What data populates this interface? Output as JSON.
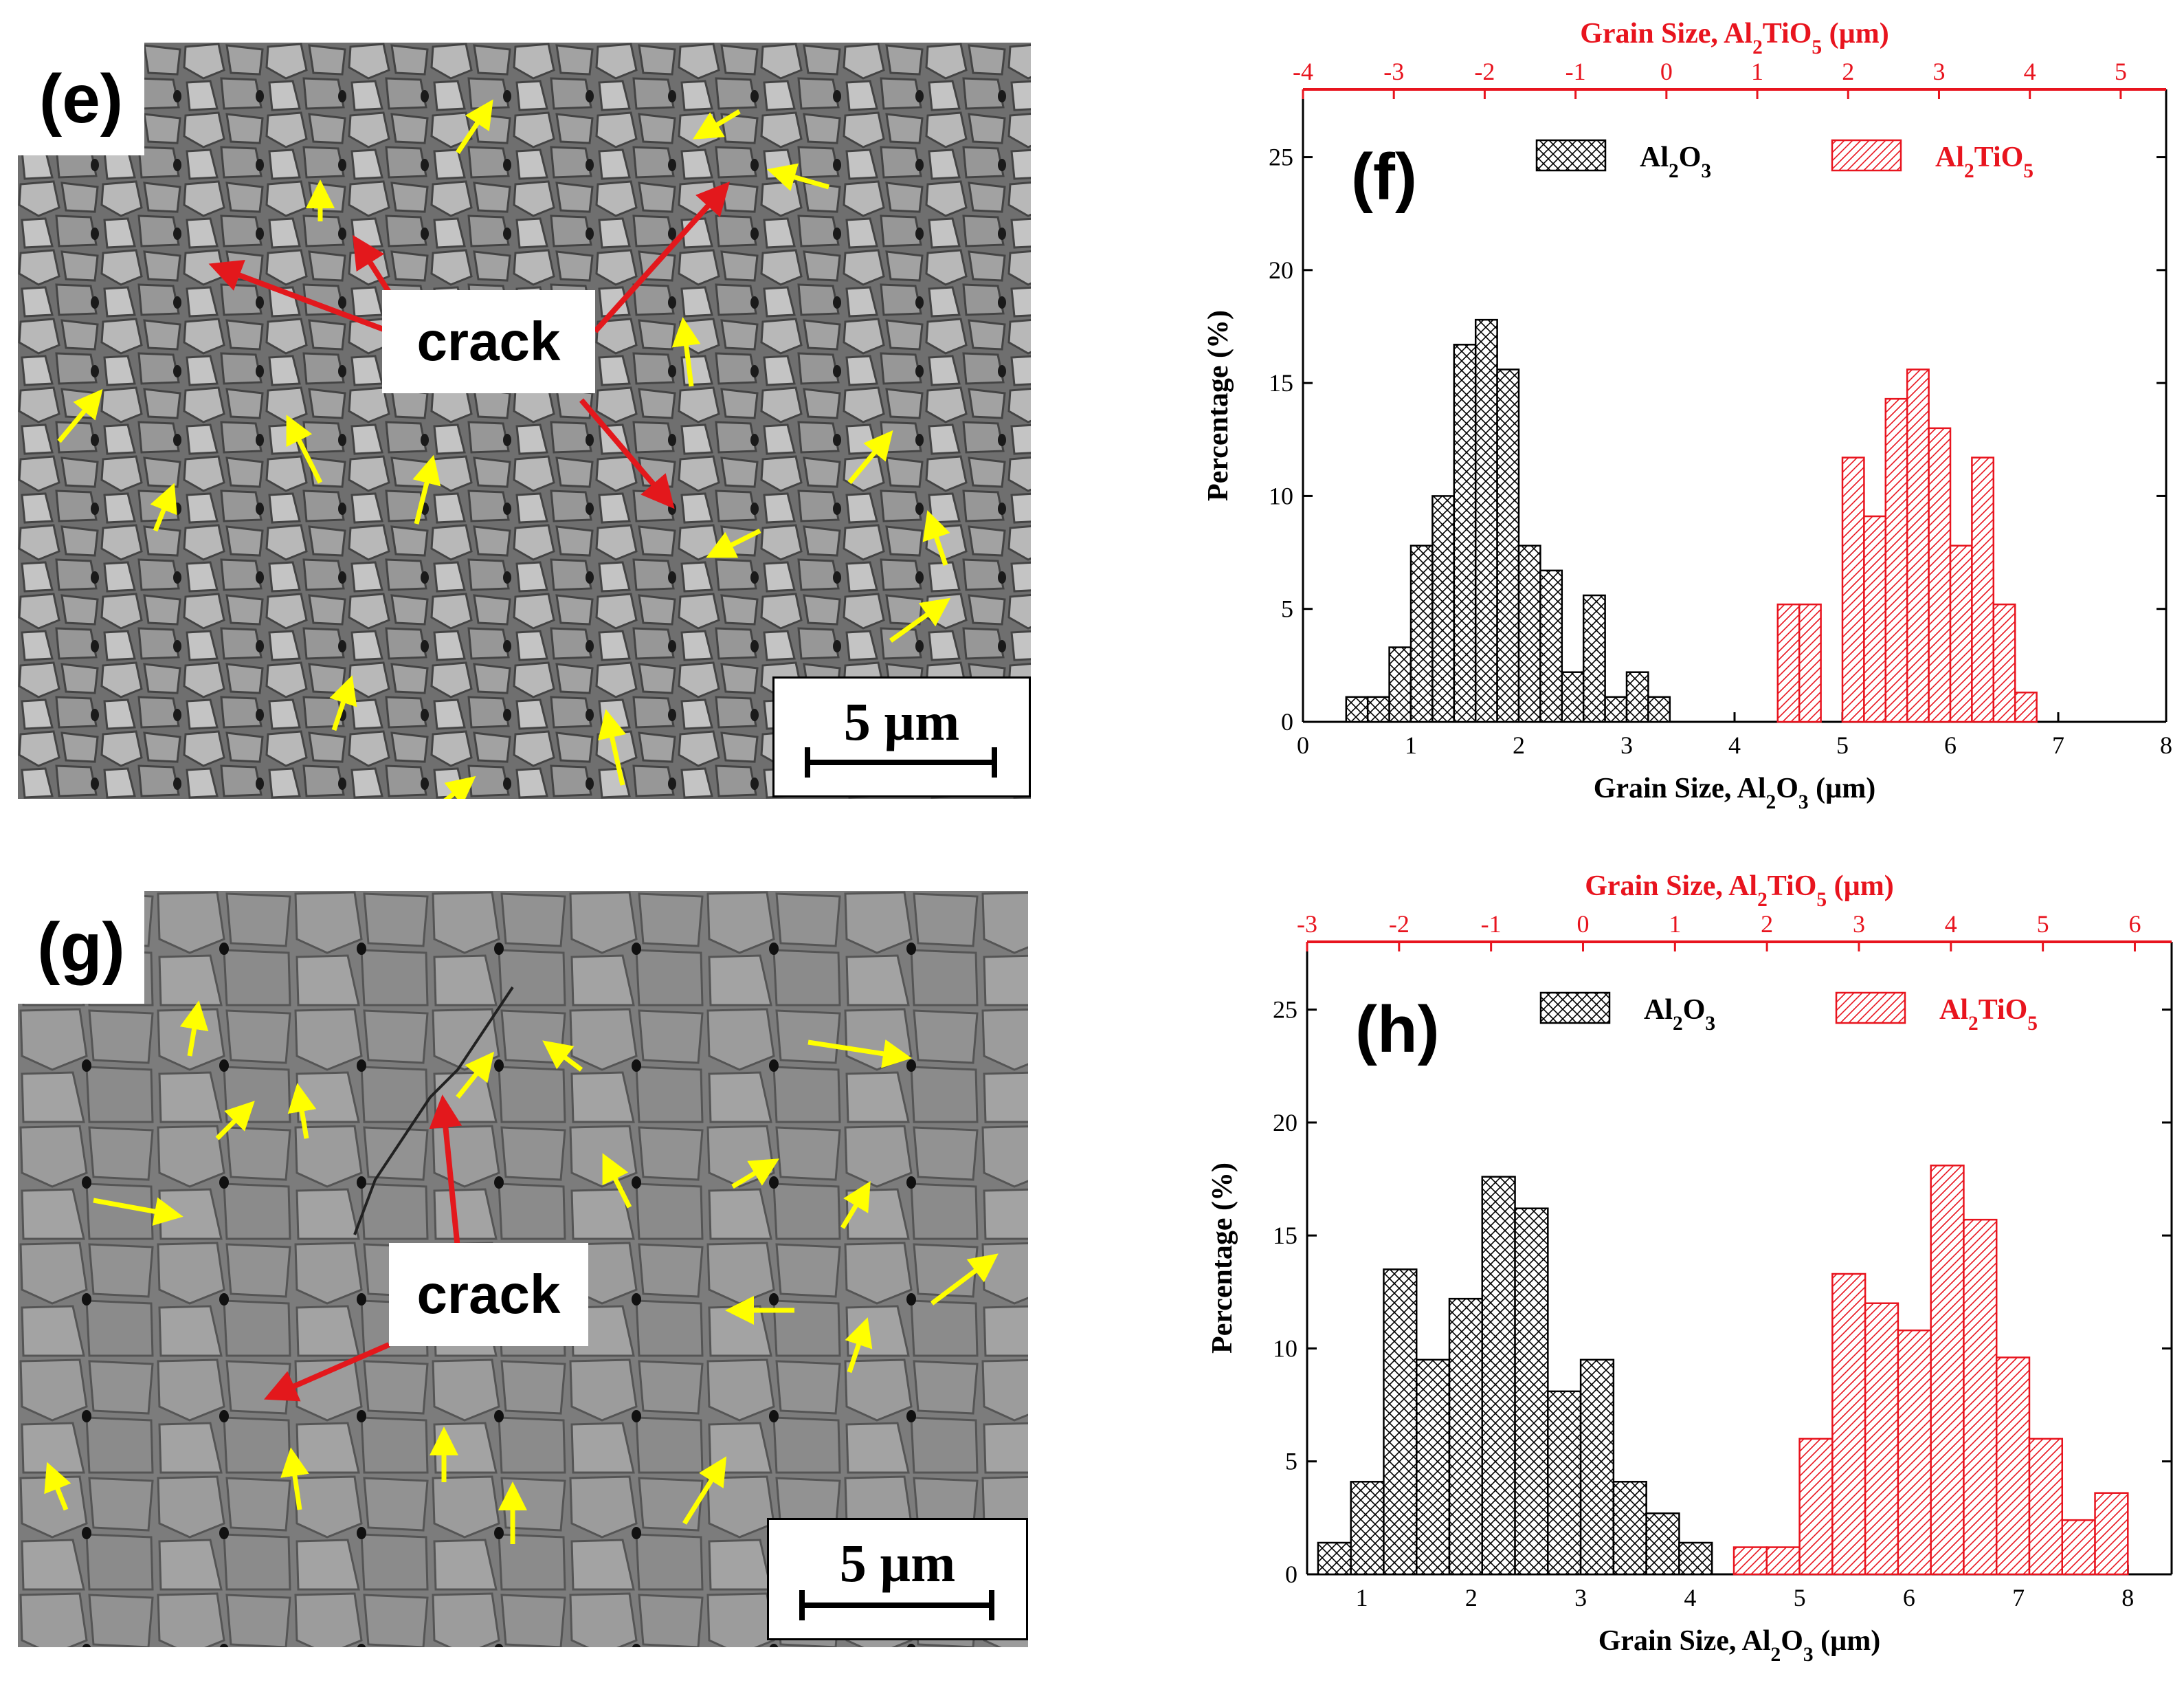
{
  "panels": {
    "e": {
      "tag": "(e)",
      "callout": "crack",
      "scalebar": "5 µm"
    },
    "g": {
      "tag": "(g)",
      "callout": "crack",
      "scalebar": "5 µm"
    }
  },
  "colors": {
    "al2o3": "#000000",
    "al2tio5": "#e8141e",
    "arrow_yellow": "#ffff00",
    "arrow_red": "#e3181c"
  },
  "chart_data": [
    {
      "type": "bar",
      "panel_label": "(f)",
      "xlabel": "Grain Size, Al2O3 (µm)",
      "xlabel_top": "Grain Size, Al2TiO5 (µm)",
      "ylabel": "Percentage (%)",
      "xlim": [
        0,
        8
      ],
      "xticks": [
        0,
        1,
        2,
        3,
        4,
        5,
        6,
        7,
        8
      ],
      "xlim_top": [
        -4,
        5.5
      ],
      "xticks_top": [
        -4,
        -3,
        -2,
        -1,
        0,
        1,
        2,
        3,
        4,
        5
      ],
      "ylim": [
        0,
        28
      ],
      "yticks": [
        0,
        5,
        10,
        15,
        20,
        25
      ],
      "legend_position": "top",
      "series": [
        {
          "name": "Al2O3",
          "color": "#000000",
          "pattern": "crosshatch",
          "bin_width": 0.2,
          "x": [
            0.5,
            0.7,
            0.9,
            1.1,
            1.3,
            1.5,
            1.7,
            1.9,
            2.1,
            2.3,
            2.5,
            2.7,
            2.9,
            3.1,
            3.3
          ],
          "values": [
            1.1,
            1.1,
            3.3,
            7.8,
            10.0,
            16.7,
            17.8,
            15.6,
            7.8,
            6.7,
            2.2,
            5.6,
            1.1,
            2.2,
            1.1
          ]
        },
        {
          "name": "Al2TiO5",
          "color": "#e8141e",
          "pattern": "hatch",
          "bin_width": 0.2,
          "x": [
            4.5,
            4.7,
            4.9,
            5.1,
            5.3,
            5.5,
            5.7,
            5.9,
            6.1,
            6.3,
            6.5,
            6.7,
            6.9
          ],
          "values": [
            5.2,
            5.2,
            0,
            11.7,
            9.1,
            14.3,
            15.6,
            13.0,
            7.8,
            11.7,
            5.2,
            1.3,
            0
          ]
        }
      ]
    },
    {
      "type": "bar",
      "panel_label": "(h)",
      "xlabel": "Grain Size, Al2O3 (µm)",
      "xlabel_top": "Grain Size, Al2TiO5 (µm)",
      "ylabel": "Percentage (%)",
      "xlim": [
        0.5,
        8.4
      ],
      "xticks": [
        1,
        2,
        3,
        4,
        5,
        6,
        7,
        8
      ],
      "xlim_top": [
        -3,
        6.4
      ],
      "xticks_top": [
        -3,
        -2,
        -1,
        0,
        1,
        2,
        3,
        4,
        5,
        6
      ],
      "ylim": [
        0,
        28
      ],
      "yticks": [
        0,
        5,
        10,
        15,
        20,
        25
      ],
      "legend_position": "top",
      "series": [
        {
          "name": "Al2O3",
          "color": "#000000",
          "pattern": "crosshatch",
          "bin_width": 0.3,
          "x": [
            0.75,
            1.05,
            1.35,
            1.65,
            1.95,
            2.25,
            2.55,
            2.85,
            3.15,
            3.45,
            3.75,
            4.05
          ],
          "values": [
            1.4,
            4.1,
            13.5,
            9.5,
            12.2,
            17.6,
            16.2,
            8.1,
            9.5,
            4.1,
            2.7,
            1.4
          ]
        },
        {
          "name": "Al2TiO5",
          "color": "#e8141e",
          "pattern": "hatch",
          "bin_width": 0.3,
          "x": [
            4.55,
            4.85,
            5.15,
            5.45,
            5.75,
            6.05,
            6.35,
            6.65,
            6.95,
            7.25,
            7.55,
            7.85,
            8.15
          ],
          "values": [
            1.2,
            1.2,
            6.0,
            13.3,
            12.0,
            10.8,
            18.1,
            15.7,
            9.6,
            6.0,
            2.4,
            3.6,
            0
          ]
        }
      ]
    }
  ]
}
